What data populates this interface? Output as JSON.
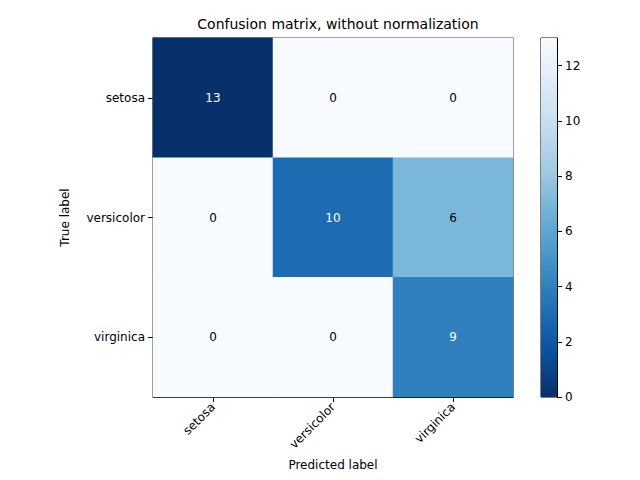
{
  "chart_data": {
    "type": "heatmap",
    "title": "Confusion matrix, without normalization",
    "x_label": "Predicted label",
    "y_label": "True label",
    "x_categories": [
      "setosa",
      "versicolor",
      "virginica"
    ],
    "y_categories": [
      "setosa",
      "versicolor",
      "virginica"
    ],
    "cells": [
      [
        13,
        0,
        0
      ],
      [
        0,
        10,
        6
      ],
      [
        0,
        0,
        9
      ]
    ],
    "colorbar": {
      "range": [
        0,
        13
      ],
      "ticks": [
        0,
        2,
        4,
        6,
        8,
        10,
        12
      ]
    },
    "data_labels": true
  }
}
